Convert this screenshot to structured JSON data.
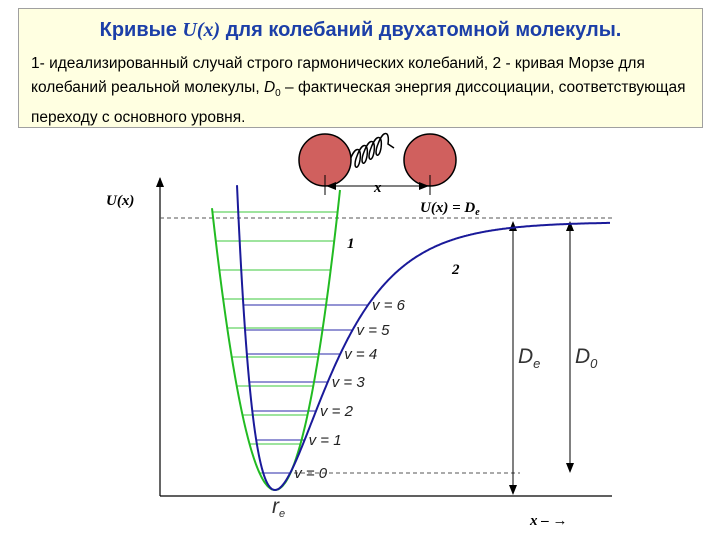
{
  "header": {
    "title": {
      "before": "Кривые ",
      "symbol": "U(x)",
      "after": " для колебаний двухатомной молекулы."
    },
    "description": {
      "part1": "1- идеализированный случай строго гармонических колебаний, 2 - кривая Морзе для колебаний реальной молекулы, ",
      "symbol": "D",
      "subscript": "0",
      "part2": " – фактическая энергия диссоциации, соответствующая переходу с основного уровня."
    }
  },
  "diagram": {
    "y_axis_label": "U(x)",
    "asymptote_label": {
      "main": "U(x) = D",
      "sub": "e"
    },
    "curve_labels": [
      "1",
      "2"
    ],
    "molecule_label": "x",
    "x_axis_label": "x – →",
    "equilibrium_label": {
      "main": "r",
      "sub": "e"
    },
    "depth_labels": [
      {
        "main": "D",
        "sub": "e"
      },
      {
        "main": "D",
        "sub": "0"
      }
    ],
    "levels": [
      "v = 0",
      "v = 1",
      "v = 2",
      "v = 3",
      "v = 4",
      "v = 5",
      "v = 6"
    ]
  }
}
